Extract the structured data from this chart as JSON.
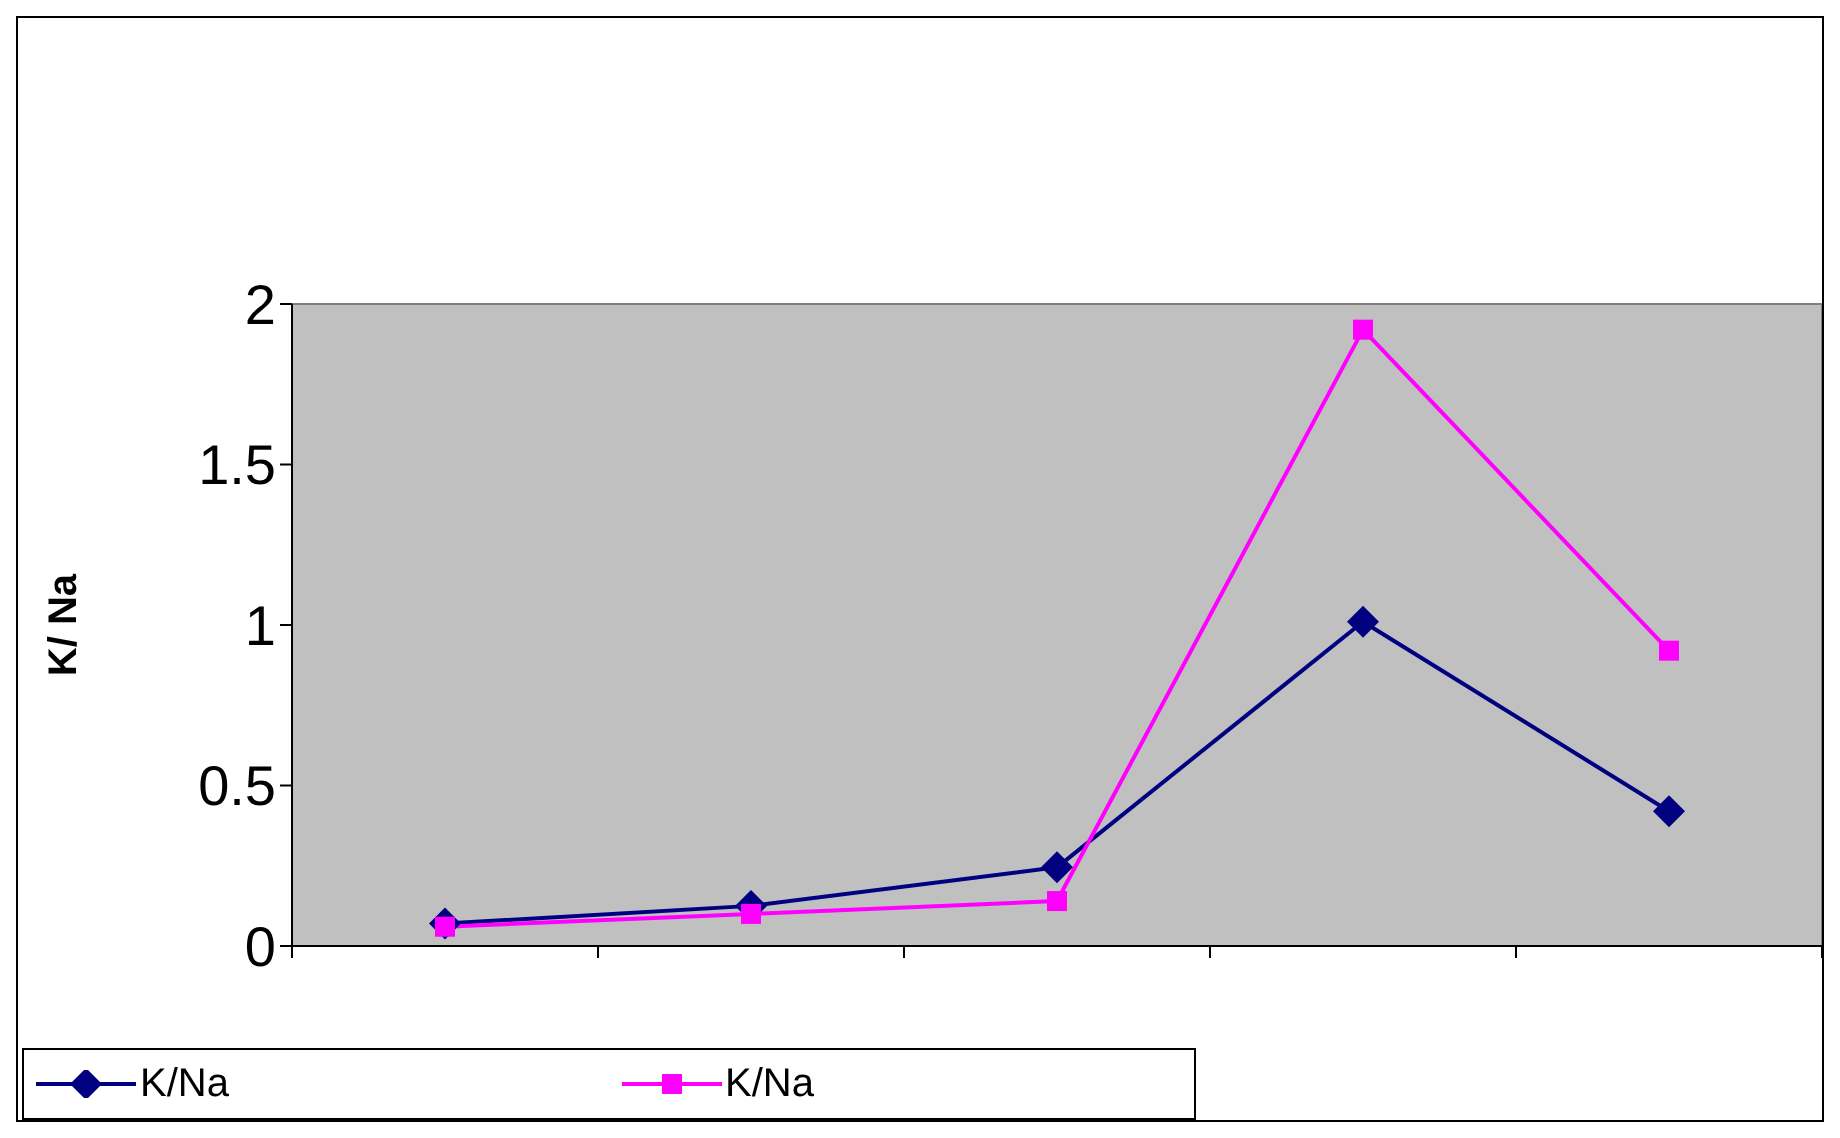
{
  "chart_data": {
    "type": "line",
    "ylabel": "K/ Na",
    "categories": [
      null,
      null,
      null,
      null,
      null
    ],
    "series": [
      {
        "name": "K/Na",
        "color": "#000080",
        "marker": "diamond",
        "values": [
          0.07,
          0.125,
          0.245,
          1.01,
          0.42
        ]
      },
      {
        "name": "K/Na",
        "color": "#ff00ff",
        "marker": "square",
        "values": [
          0.06,
          0.1,
          0.14,
          1.92,
          0.92
        ]
      }
    ],
    "ylim": [
      0,
      2
    ],
    "yticks": [
      0,
      0.5,
      1,
      1.5,
      2
    ],
    "legend": "bottom left"
  }
}
